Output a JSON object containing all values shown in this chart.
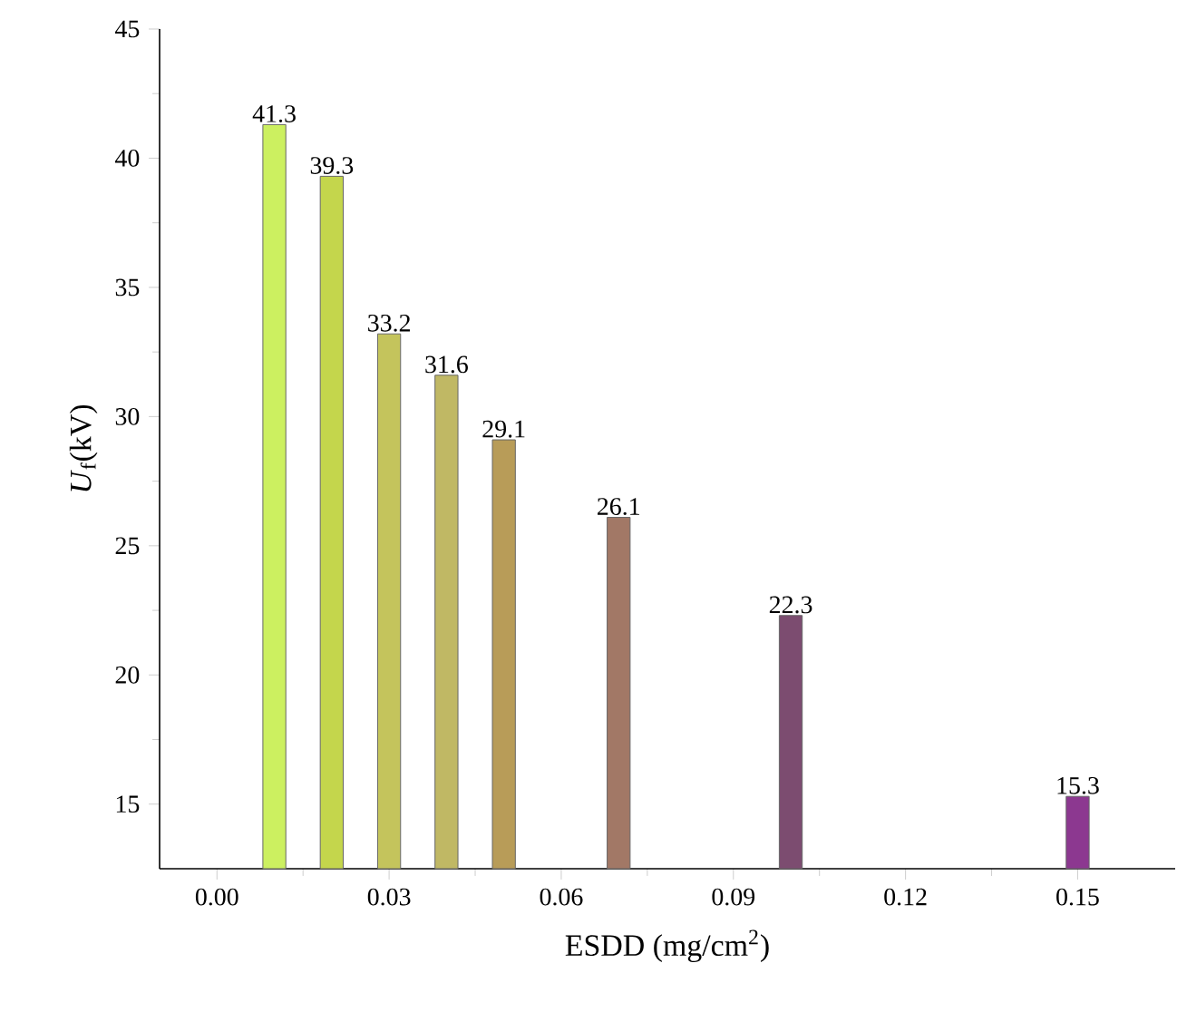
{
  "chart_data": {
    "type": "bar",
    "xlabel": "ESDD (mg/cm$^{2}$)",
    "ylabel": "*U*$_{f}$(kV)",
    "x": [
      0.01,
      0.02,
      0.03,
      0.04,
      0.05,
      0.07,
      0.1,
      0.15
    ],
    "values": [
      41.3,
      39.3,
      33.2,
      31.6,
      29.1,
      26.1,
      22.3,
      15.3
    ],
    "colors": [
      "#ccf060",
      "#c4d64c",
      "#c4c45c",
      "#c0b864",
      "#b89c58",
      "#a27866",
      "#7c4c70",
      "#8c3890"
    ],
    "data_labels": true,
    "xlim": [
      -0.01,
      0.167
    ],
    "xticks": [
      {
        "value": 0,
        "label": "0.00"
      },
      {
        "value": 0.03,
        "label": "0.03"
      },
      {
        "value": 0.06,
        "label": "0.06"
      },
      {
        "value": 0.09,
        "label": "0.09"
      },
      {
        "value": 0.12,
        "label": "0.12"
      },
      {
        "value": 0.15,
        "label": "0.15"
      }
    ],
    "ylim": [
      12.5,
      45
    ],
    "yticks": [
      15,
      20,
      25,
      30,
      35,
      40,
      45
    ],
    "grid": false
  }
}
